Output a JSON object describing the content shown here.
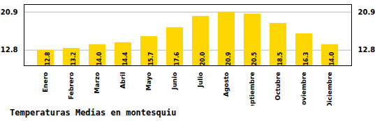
{
  "chart_data": {
    "type": "bar",
    "title": "Temperaturas Medias en montesquiu",
    "categories": [
      "Enero",
      "Febrero",
      "Marzo",
      "Abril",
      "Mayo",
      "Junio",
      "Julio",
      "Agosto",
      "Septiembre",
      "Octubre",
      "Noviembre",
      "Diciembre"
    ],
    "values": [
      12.8,
      13.2,
      14.0,
      14.4,
      15.7,
      17.6,
      20.0,
      20.9,
      20.5,
      18.5,
      16.3,
      14.0
    ],
    "value_labels": [
      "12.8",
      "13.2",
      "14.0",
      "14.4",
      "15.7",
      "17.6",
      "20.0",
      "20.9",
      "20.5",
      "18.5",
      "16.3",
      "14.0"
    ],
    "color": "#FFD700",
    "ylim": [
      9.5,
      22.5
    ],
    "yticks": [
      12.8,
      20.9
    ],
    "grid": true,
    "data_labels": true
  }
}
